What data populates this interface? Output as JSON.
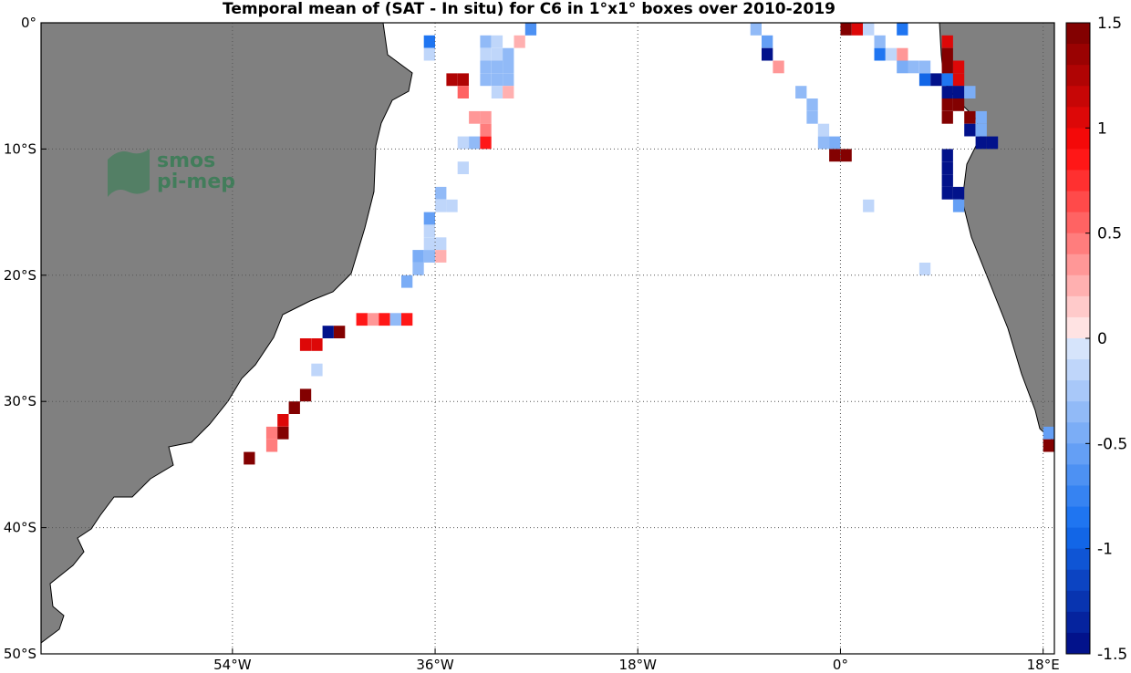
{
  "title": "Temporal mean of (SAT - In situ) for C6 in 1°x1° boxes over 2010-2019",
  "logo": {
    "line1": "smos",
    "line2": "pi-mep",
    "icon": "waves-logo-icon"
  },
  "colors": {
    "land": "#808080",
    "ocean": "#ffffff",
    "grid": "#555555"
  },
  "map": {
    "lon_range": [
      -71,
      19
    ],
    "lat_range": [
      -50,
      0
    ],
    "lat_ticks": [
      {
        "value": 0,
        "label": "0°"
      },
      {
        "value": -10,
        "label": "10°S"
      },
      {
        "value": -20,
        "label": "20°S"
      },
      {
        "value": -30,
        "label": "30°S"
      },
      {
        "value": -40,
        "label": "40°S"
      },
      {
        "value": -50,
        "label": "50°S"
      }
    ],
    "lon_ticks": [
      {
        "value": -54,
        "label": "54°W"
      },
      {
        "value": -36,
        "label": "36°W"
      },
      {
        "value": -18,
        "label": "18°W"
      },
      {
        "value": 0,
        "label": "0°"
      },
      {
        "value": 18,
        "label": "18°E"
      }
    ],
    "grid": "dotted"
  },
  "colorbar": {
    "range": [
      -1.5,
      1.5
    ],
    "levels": 30,
    "ticks": [
      {
        "value": 1.5,
        "label": "1.5"
      },
      {
        "value": 1,
        "label": "1"
      },
      {
        "value": 0.5,
        "label": "0.5"
      },
      {
        "value": 0,
        "label": "0"
      },
      {
        "value": -0.5,
        "label": "-0.5"
      },
      {
        "value": -1,
        "label": "-1"
      },
      {
        "value": -1.5,
        "label": "-1.5"
      }
    ]
  },
  "chart_data": {
    "type": "heatmap",
    "description_units": "degrees lon/lat box, value in colorbar units",
    "cells": [
      [
        -37,
        -1,
        -0.8
      ],
      [
        -37,
        -2,
        -0.2
      ],
      [
        -32,
        -1,
        -0.3
      ],
      [
        -32,
        -2,
        -0.2
      ],
      [
        -32,
        -3,
        -0.4
      ],
      [
        -32,
        -4,
        -0.4
      ],
      [
        -31,
        -1,
        -0.2
      ],
      [
        -31,
        -2,
        -0.2
      ],
      [
        -31,
        -3,
        -0.4
      ],
      [
        -31,
        -4,
        -0.4
      ],
      [
        -31,
        -5,
        -0.2
      ],
      [
        -30,
        -2,
        -0.3
      ],
      [
        -30,
        -3,
        -0.3
      ],
      [
        -30,
        -4,
        -0.3
      ],
      [
        -30,
        -5,
        0.2
      ],
      [
        -29,
        -1,
        0.2
      ],
      [
        -28,
        0,
        -0.7
      ],
      [
        -35,
        -4,
        1.2
      ],
      [
        -34,
        -4,
        1.2
      ],
      [
        -34,
        -5,
        0.5
      ],
      [
        -33,
        -7,
        0.3
      ],
      [
        -32,
        -7,
        0.3
      ],
      [
        -32,
        -8,
        0.4
      ],
      [
        -34,
        -9,
        -0.2
      ],
      [
        -33,
        -9,
        -0.4
      ],
      [
        -32,
        -9,
        0.9
      ],
      [
        -34,
        -11,
        -0.2
      ],
      [
        -36,
        -13,
        -0.3
      ],
      [
        -36,
        -14,
        -0.2
      ],
      [
        -35,
        -14,
        -0.2
      ],
      [
        -37,
        -15,
        -0.6
      ],
      [
        -37,
        -16,
        -0.2
      ],
      [
        -37,
        -17,
        -0.2
      ],
      [
        -36,
        -17,
        -0.2
      ],
      [
        -38,
        -18,
        -0.5
      ],
      [
        -37,
        -18,
        -0.4
      ],
      [
        -36,
        -18,
        0.2
      ],
      [
        -38,
        -19,
        -0.4
      ],
      [
        -39,
        -20,
        -0.5
      ],
      [
        -43,
        -23,
        0.8
      ],
      [
        -42,
        -23,
        0.3
      ],
      [
        -41,
        -23,
        0.9
      ],
      [
        -40,
        -23,
        -0.3
      ],
      [
        -39,
        -23,
        0.8
      ],
      [
        -46,
        -24,
        -1.5
      ],
      [
        -45,
        -24,
        1.5
      ],
      [
        -48,
        -25,
        1.0
      ],
      [
        -47,
        -25,
        1.0
      ],
      [
        -47,
        -27,
        -0.2
      ],
      [
        -48,
        -29,
        1.5
      ],
      [
        -49,
        -30,
        1.5
      ],
      [
        -50,
        -31,
        1.0
      ],
      [
        -51,
        -32,
        0.4
      ],
      [
        -50,
        -32,
        1.5
      ],
      [
        -51,
        -33,
        0.4
      ],
      [
        -53,
        -34,
        1.5
      ],
      [
        -8,
        0,
        -0.3
      ],
      [
        -7,
        -1,
        -0.6
      ],
      [
        -7,
        -2,
        -1.5
      ],
      [
        -6,
        -3,
        0.3
      ],
      [
        -4,
        -5,
        -0.4
      ],
      [
        -3,
        -6,
        -0.4
      ],
      [
        -3,
        -7,
        -0.4
      ],
      [
        -2,
        -8,
        -0.2
      ],
      [
        -2,
        -9,
        -0.4
      ],
      [
        -1,
        -9,
        -0.5
      ],
      [
        -1,
        -10,
        1.5
      ],
      [
        0,
        -10,
        1.5
      ],
      [
        0,
        0,
        1.5
      ],
      [
        1,
        0,
        1.0
      ],
      [
        2,
        0,
        -0.2
      ],
      [
        3,
        -1,
        -0.4
      ],
      [
        3,
        -2,
        -0.8
      ],
      [
        4,
        -2,
        -0.2
      ],
      [
        5,
        0,
        -0.8
      ],
      [
        5,
        -2,
        0.3
      ],
      [
        5,
        -3,
        -0.5
      ],
      [
        6,
        -3,
        -0.4
      ],
      [
        7,
        -3,
        -0.4
      ],
      [
        7,
        -4,
        -1.0
      ],
      [
        8,
        -4,
        -1.5
      ],
      [
        9,
        -4,
        -0.8
      ],
      [
        9,
        -1,
        1.0
      ],
      [
        9,
        -2,
        1.5
      ],
      [
        9,
        -3,
        1.5
      ],
      [
        10,
        -3,
        1.0
      ],
      [
        10,
        -4,
        1.0
      ],
      [
        9,
        -5,
        -1.5
      ],
      [
        10,
        -5,
        -1.5
      ],
      [
        11,
        -5,
        -0.5
      ],
      [
        9,
        -6,
        1.5
      ],
      [
        10,
        -6,
        1.5
      ],
      [
        9,
        -7,
        1.5
      ],
      [
        11,
        -7,
        1.5
      ],
      [
        12,
        -7,
        -0.5
      ],
      [
        11,
        -8,
        -1.5
      ],
      [
        12,
        -8,
        -0.5
      ],
      [
        12,
        -9,
        -1.5
      ],
      [
        13,
        -9,
        -1.5
      ],
      [
        9,
        -10,
        -1.5
      ],
      [
        9,
        -11,
        -1.5
      ],
      [
        9,
        -12,
        -1.5
      ],
      [
        9,
        -13,
        -1.5
      ],
      [
        10,
        -13,
        -1.5
      ],
      [
        10,
        -14,
        -0.6
      ],
      [
        2,
        -14,
        -0.2
      ],
      [
        7,
        -19,
        -0.2
      ],
      [
        18,
        -32,
        -0.6
      ],
      [
        18,
        -33,
        1.5
      ]
    ]
  }
}
